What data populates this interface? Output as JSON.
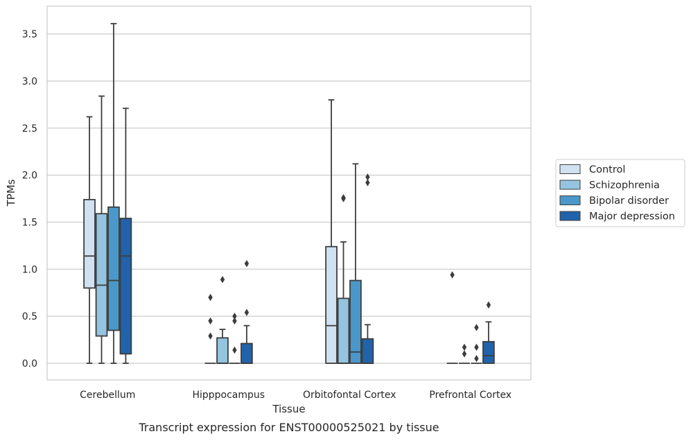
{
  "chart_data": {
    "type": "boxplot",
    "caption": "Transcript expression for ENST00000525021 by tissue",
    "xlabel": "Tissue",
    "ylabel": "TPMs",
    "ylim": [
      -0.17,
      3.77
    ],
    "yticks": [
      "0.0",
      "0.5",
      "1.0",
      "1.5",
      "2.0",
      "2.5",
      "3.0",
      "3.5"
    ],
    "ytick_values": [
      0,
      0.5,
      1.0,
      1.5,
      2.0,
      2.5,
      3.0,
      3.5
    ],
    "grid": "horizontal",
    "legend_position": "right",
    "categories": [
      "Cerebellum",
      "Hipppocampus",
      "Orbitofontal Cortex",
      "Prefrontal Cortex"
    ],
    "series": [
      {
        "name": "Control",
        "color": "#d0e1f2",
        "boxes": [
          {
            "min": 0,
            "q1": 0.8,
            "median": 1.14,
            "q3": 1.74,
            "max": 2.62,
            "outliers": []
          },
          {
            "min": 0,
            "q1": 0,
            "median": 0,
            "q3": 0,
            "max": 0,
            "outliers": [
              0.29,
              0.45,
              0.7
            ]
          },
          {
            "min": 0,
            "q1": 0,
            "median": 0.4,
            "q3": 1.24,
            "max": 2.8,
            "outliers": []
          },
          {
            "min": 0,
            "q1": 0,
            "median": 0,
            "q3": 0,
            "max": 0,
            "outliers": [
              0.94
            ]
          }
        ]
      },
      {
        "name": "Schizophrenia",
        "color": "#94c4df",
        "boxes": [
          {
            "min": 0,
            "q1": 0.29,
            "median": 0.83,
            "q3": 1.59,
            "max": 2.84,
            "outliers": []
          },
          {
            "min": 0,
            "q1": 0,
            "median": 0,
            "q3": 0.27,
            "max": 0.36,
            "outliers": [
              0.89
            ]
          },
          {
            "min": 0,
            "q1": 0,
            "median": 0,
            "q3": 0.69,
            "max": 1.29,
            "outliers": [
              1.75,
              1.76
            ]
          },
          {
            "min": 0,
            "q1": 0,
            "median": 0,
            "q3": 0,
            "max": 0,
            "outliers": [
              0.1,
              0.17
            ]
          }
        ]
      },
      {
        "name": "Bipolar disorder",
        "color": "#4a98c9",
        "boxes": [
          {
            "min": 0,
            "q1": 0.35,
            "median": 0.88,
            "q3": 1.66,
            "max": 3.61,
            "outliers": []
          },
          {
            "min": 0,
            "q1": 0,
            "median": 0,
            "q3": 0,
            "max": 0,
            "outliers": [
              0.14,
              0.45,
              0.5
            ]
          },
          {
            "min": 0,
            "q1": 0,
            "median": 0.12,
            "q3": 0.88,
            "max": 2.12,
            "outliers": []
          },
          {
            "min": 0,
            "q1": 0,
            "median": 0,
            "q3": 0,
            "max": 0,
            "outliers": [
              0.05,
              0.17,
              0.38
            ]
          }
        ]
      },
      {
        "name": "Major depression",
        "color": "#2163aa",
        "boxes": [
          {
            "min": 0,
            "q1": 0.1,
            "median": 1.14,
            "q3": 1.54,
            "max": 2.71,
            "outliers": []
          },
          {
            "min": 0,
            "q1": 0,
            "median": 0,
            "q3": 0.21,
            "max": 0.4,
            "outliers": [
              0.54,
              1.06
            ]
          },
          {
            "min": 0,
            "q1": 0,
            "median": 0,
            "q3": 0.26,
            "max": 0.41,
            "outliers": [
              1.92,
              1.98
            ]
          },
          {
            "min": 0,
            "q1": 0,
            "median": 0.08,
            "q3": 0.23,
            "max": 0.44,
            "outliers": [
              0.62
            ]
          }
        ]
      }
    ]
  }
}
